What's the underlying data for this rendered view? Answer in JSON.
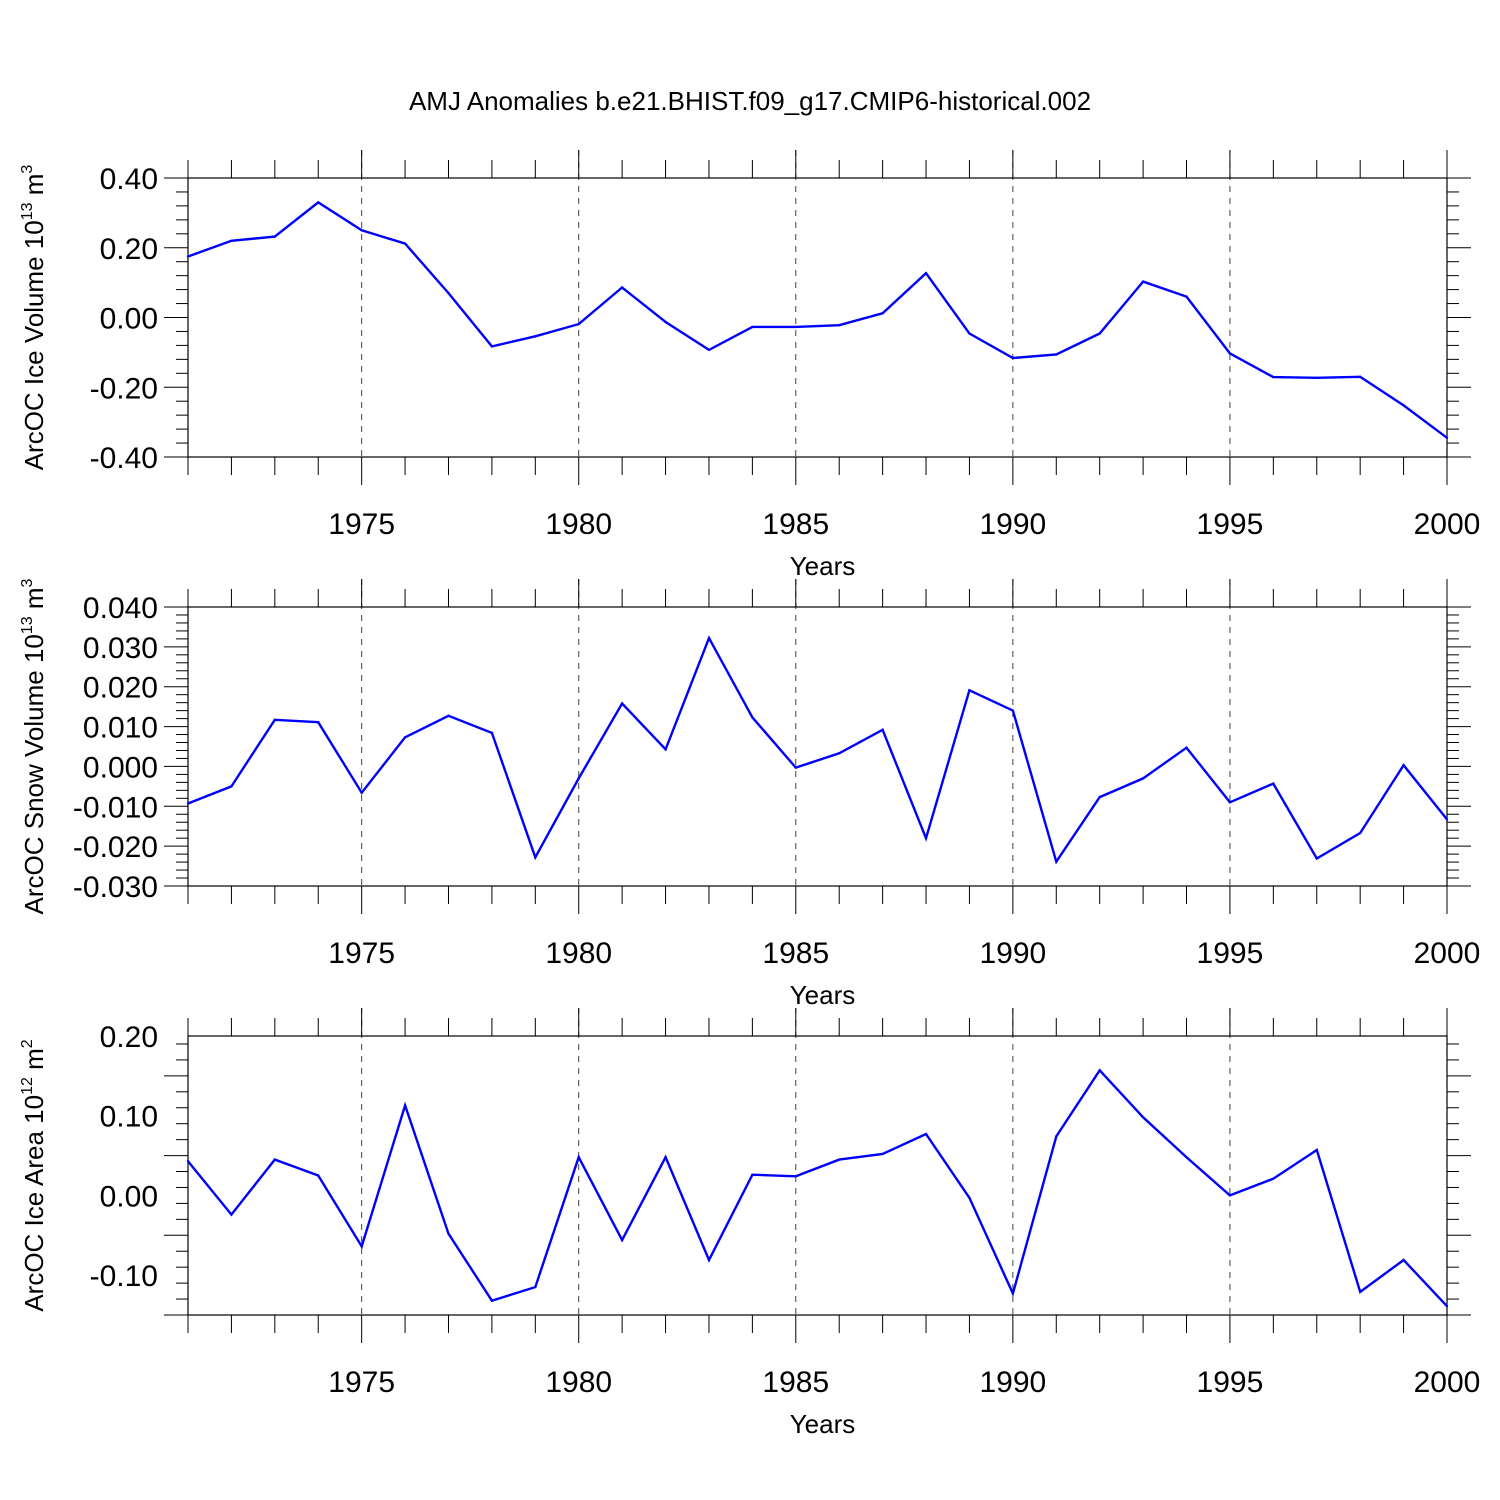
{
  "title": "AMJ Anomalies b.e21.BHIST.f09_g17.CMIP6-historical.002",
  "colors": {
    "line": "#0000ff",
    "axis": "#000000",
    "grid": "#000000"
  },
  "chart_data": [
    {
      "type": "line",
      "ylabel": {
        "prefix": "ArcOC Ice Volume 10",
        "exponent": "13",
        "unit": " m",
        "unit_exponent": "3"
      },
      "xlabel": "Years",
      "xlim": [
        1971,
        2000
      ],
      "ylim": [
        -0.4,
        0.4
      ],
      "x_ticks": [
        "1975",
        "1980",
        "1985",
        "1990",
        "1995",
        "2000"
      ],
      "y_ticks": [
        "-0.40",
        "-0.20",
        "0.00",
        "0.20",
        "0.40"
      ],
      "grid": "vertical dashed at major x ticks",
      "x": [
        1971,
        1972,
        1973,
        1974,
        1975,
        1976,
        1977,
        1978,
        1979,
        1980,
        1981,
        1982,
        1983,
        1984,
        1985,
        1986,
        1987,
        1988,
        1989,
        1990,
        1991,
        1992,
        1993,
        1994,
        1995,
        1996,
        1997,
        1998,
        1999,
        2000
      ],
      "values": [
        0.175,
        0.22,
        0.232,
        0.33,
        0.25,
        0.212,
        0.07,
        -0.083,
        -0.054,
        -0.019,
        0.086,
        -0.013,
        -0.093,
        -0.027,
        -0.027,
        -0.022,
        0.012,
        0.127,
        -0.046,
        -0.116,
        -0.106,
        -0.046,
        0.103,
        0.06,
        -0.103,
        -0.171,
        -0.173,
        -0.17,
        -0.252,
        -0.345
      ]
    },
    {
      "type": "line",
      "ylabel": {
        "prefix": "ArcOC Snow Volume 10",
        "exponent": "13",
        "unit": " m",
        "unit_exponent": "3"
      },
      "xlabel": "Years",
      "xlim": [
        1971,
        2000
      ],
      "ylim": [
        -0.03,
        0.04
      ],
      "x_ticks": [
        "1975",
        "1980",
        "1985",
        "1990",
        "1995",
        "2000"
      ],
      "y_ticks": [
        "-0.030",
        "-0.020",
        "-0.010",
        "0.000",
        "0.010",
        "0.020",
        "0.030",
        "0.040"
      ],
      "grid": "vertical dashed at major x ticks",
      "x": [
        1971,
        1972,
        1973,
        1974,
        1975,
        1976,
        1977,
        1978,
        1979,
        1980,
        1981,
        1982,
        1983,
        1984,
        1985,
        1986,
        1987,
        1988,
        1989,
        1990,
        1991,
        1992,
        1993,
        1994,
        1995,
        1996,
        1997,
        1998,
        1999,
        2000
      ],
      "values": [
        -0.0093,
        -0.005,
        0.0117,
        0.0111,
        -0.0066,
        0.0073,
        0.0127,
        0.0084,
        -0.0228,
        -0.003,
        0.0158,
        0.0043,
        0.0322,
        0.0123,
        -0.0003,
        0.0033,
        0.0092,
        -0.018,
        0.0191,
        0.014,
        -0.0239,
        -0.0077,
        -0.003,
        0.0047,
        -0.009,
        -0.0043,
        -0.0231,
        -0.0167,
        0.0003,
        -0.0133
      ]
    },
    {
      "type": "line",
      "ylabel": {
        "prefix": "ArcOC Ice Area 10",
        "exponent": "12",
        "unit": " m",
        "unit_exponent": "2"
      },
      "xlabel": "Years",
      "xlim": [
        1971,
        2000
      ],
      "ylim": [
        -0.15,
        0.2
      ],
      "x_ticks": [
        "1975",
        "1980",
        "1985",
        "1990",
        "1995",
        "2000"
      ],
      "y_ticks": [
        "-0.10",
        "0.00",
        "0.10",
        "0.20"
      ],
      "grid": "vertical dashed at major x ticks",
      "x": [
        1971,
        1972,
        1973,
        1974,
        1975,
        1976,
        1977,
        1978,
        1979,
        1980,
        1981,
        1982,
        1983,
        1984,
        1985,
        1986,
        1987,
        1988,
        1989,
        1990,
        1991,
        1992,
        1993,
        1994,
        1995,
        1996,
        1997,
        1998,
        1999,
        2000
      ],
      "values": [
        0.043,
        -0.024,
        0.045,
        0.025,
        -0.064,
        0.113,
        -0.048,
        -0.132,
        -0.115,
        0.048,
        -0.056,
        0.048,
        -0.081,
        0.026,
        0.024,
        0.045,
        0.052,
        0.077,
        -0.003,
        -0.123,
        0.074,
        0.157,
        0.098,
        0.048,
        0.0,
        0.021,
        0.057,
        -0.121,
        -0.081,
        -0.139
      ]
    }
  ]
}
